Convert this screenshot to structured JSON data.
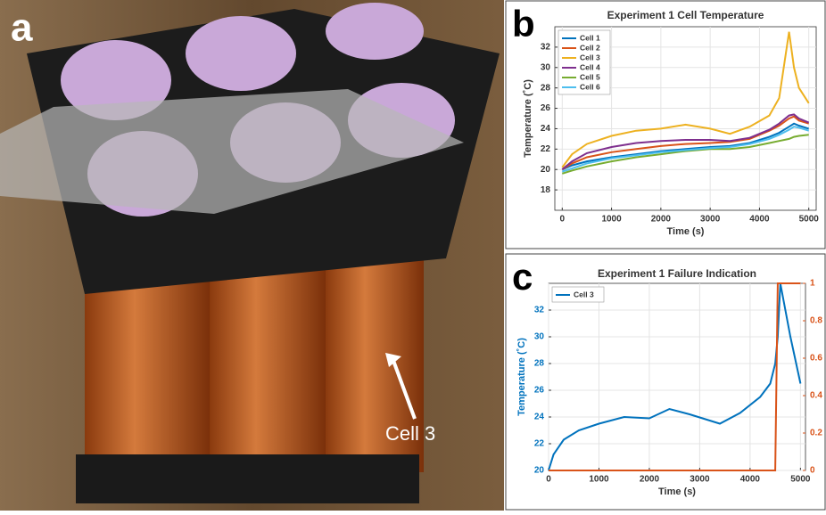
{
  "photo": {
    "panel_label": "a",
    "annotation": "Cell 3"
  },
  "chart_data": [
    {
      "type": "line",
      "panel_label": "b",
      "title": "Experiment 1 Cell Temperature",
      "xlabel": "Time (s)",
      "ylabel": "Temperature (˚C)",
      "x": [
        0,
        200,
        500,
        1000,
        1500,
        2000,
        2500,
        3000,
        3400,
        3800,
        4200,
        4400,
        4600,
        4700,
        4800,
        5000
      ],
      "series": [
        {
          "name": "Cell 1",
          "color": "#0072bd",
          "values": [
            20,
            20.4,
            20.8,
            21.2,
            21.5,
            21.8,
            22.0,
            22.2,
            22.3,
            22.6,
            23.2,
            23.6,
            24.2,
            24.5,
            24.3,
            24.0
          ]
        },
        {
          "name": "Cell 2",
          "color": "#d95319",
          "values": [
            20,
            20.6,
            21.2,
            21.7,
            22.0,
            22.3,
            22.5,
            22.6,
            22.7,
            23.0,
            23.8,
            24.3,
            25.0,
            25.2,
            24.8,
            24.5
          ]
        },
        {
          "name": "Cell 3",
          "color": "#edb120",
          "values": [
            20.2,
            21.5,
            22.5,
            23.3,
            23.8,
            24.0,
            24.4,
            24.0,
            23.5,
            24.2,
            25.3,
            27,
            33.5,
            30,
            28,
            26.5
          ]
        },
        {
          "name": "Cell 4",
          "color": "#7e2f8e",
          "values": [
            20,
            20.8,
            21.6,
            22.2,
            22.6,
            22.8,
            22.9,
            22.9,
            22.8,
            23.1,
            23.9,
            24.5,
            25.3,
            25.4,
            25.0,
            24.6
          ]
        },
        {
          "name": "Cell 5",
          "color": "#77ac30",
          "values": [
            19.6,
            19.9,
            20.3,
            20.8,
            21.2,
            21.5,
            21.8,
            22.0,
            22.0,
            22.2,
            22.6,
            22.8,
            23.0,
            23.2,
            23.3,
            23.4
          ]
        },
        {
          "name": "Cell 6",
          "color": "#4dbeee",
          "values": [
            19.8,
            20.1,
            20.6,
            21.1,
            21.4,
            21.7,
            21.9,
            22.1,
            22.2,
            22.5,
            23.0,
            23.4,
            23.9,
            24.2,
            24.1,
            23.8
          ]
        }
      ],
      "xlim": [
        -150,
        5150
      ],
      "xticks": [
        0,
        1000,
        2000,
        3000,
        4000,
        5000
      ],
      "ylim": [
        16,
        34
      ],
      "yticks": [
        18,
        20,
        22,
        24,
        26,
        28,
        30,
        32
      ],
      "grid": true,
      "legend": "upper-left"
    },
    {
      "type": "line",
      "panel_label": "c",
      "title": "Experiment 1 Failure Indication",
      "xlabel": "Time (s)",
      "ylabel": "Temperature (˚C)",
      "x": [
        0,
        100,
        300,
        600,
        1000,
        1500,
        2000,
        2400,
        2800,
        3400,
        3800,
        4200,
        4400,
        4500,
        4550,
        4600,
        4800,
        5000
      ],
      "series": [
        {
          "name": "Cell 3",
          "color": "#0072bd",
          "values": [
            20,
            21.2,
            22.3,
            23,
            23.5,
            24,
            23.9,
            24.6,
            24.2,
            23.5,
            24.3,
            25.5,
            26.5,
            28,
            30,
            34,
            30,
            26.5
          ]
        },
        {
          "color": "#d95319",
          "axis": "y2",
          "values": [
            0,
            0,
            0,
            0,
            0,
            0,
            0,
            0,
            0,
            0,
            0,
            0,
            0,
            0,
            1,
            1,
            1,
            1
          ]
        }
      ],
      "xlim": [
        0,
        5100
      ],
      "xticks": [
        0,
        1000,
        2000,
        3000,
        4000,
        5000
      ],
      "ylim": [
        20,
        34
      ],
      "yticks": [
        20,
        22,
        24,
        26,
        28,
        30,
        32
      ],
      "y2lim": [
        0,
        1
      ],
      "y2ticks": [
        0,
        0.2,
        0.4,
        0.6,
        0.8,
        1
      ],
      "grid": true,
      "legend": "upper-left"
    }
  ]
}
